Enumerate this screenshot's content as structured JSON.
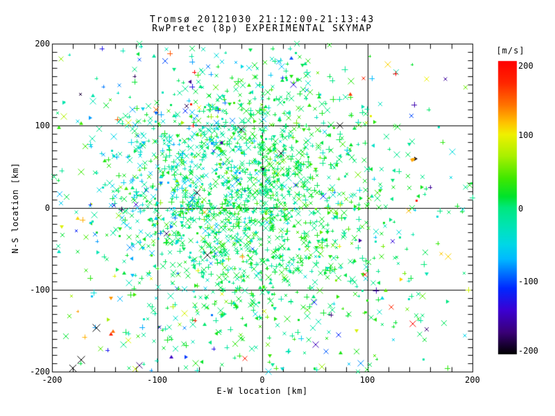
{
  "chart_data": {
    "type": "scatter",
    "title": "Tromsø 20121030 21:12:00-21:13:43",
    "subtitle": "RwPretec (8p) EXPERIMENTAL SKYMAP",
    "xlabel": "E-W location [km]",
    "ylabel": "N-S location [km]",
    "xlim": [
      -200,
      200
    ],
    "ylim": [
      -200,
      200
    ],
    "xticks": [
      -200,
      -100,
      0,
      100,
      200
    ],
    "yticks": [
      -200,
      -100,
      0,
      100,
      200
    ],
    "x_minor_step": 20,
    "y_minor_step": 10,
    "minor_tick_len": 7,
    "grid": true,
    "grid_color": "#000000",
    "frame_color": "#000000",
    "background": "#ffffff",
    "colorbar": {
      "unit_label": "[m/s]",
      "min": -200,
      "max": 200,
      "ticks": [
        200,
        100,
        0,
        -100,
        -200
      ],
      "stops": [
        [
          200,
          "#ff0000"
        ],
        [
          170,
          "#ff2600"
        ],
        [
          140,
          "#ff7300"
        ],
        [
          115,
          "#ffc400"
        ],
        [
          100,
          "#f0f000"
        ],
        [
          70,
          "#a8f000"
        ],
        [
          40,
          "#40e800"
        ],
        [
          15,
          "#00e32c"
        ],
        [
          0,
          "#00e87d"
        ],
        [
          -25,
          "#00e4b4"
        ],
        [
          -50,
          "#00d8e6"
        ],
        [
          -70,
          "#00baff"
        ],
        [
          -90,
          "#0070ff"
        ],
        [
          -110,
          "#0028ff"
        ],
        [
          -140,
          "#3c00d2"
        ],
        [
          -170,
          "#3a0078"
        ],
        [
          -200,
          "#000000"
        ]
      ]
    },
    "marker_types": [
      "x",
      "plus",
      "tri",
      "dot"
    ],
    "marker_mix": [
      0.48,
      0.34,
      0.12,
      0.06
    ],
    "point_generation": {
      "seed": 20121030,
      "size_range": [
        4,
        9
      ],
      "clusters": [
        {
          "n": 1450,
          "cx": -12,
          "cy": 8,
          "sx": 58,
          "sy": 82,
          "v_mean": 8,
          "v_sd": 20
        },
        {
          "n": 300,
          "cx": -70,
          "cy": 40,
          "sx": 55,
          "sy": 70,
          "v_mean": -48,
          "v_sd": 26
        },
        {
          "n": 340,
          "cx": 5,
          "cy": -30,
          "sx": 115,
          "sy": 112,
          "v_mean": 2,
          "v_sd": 30
        },
        {
          "n": 130,
          "uniform": true,
          "x_range": [
            -196,
            198
          ],
          "y_range": [
            -199,
            196
          ],
          "v_range": [
            -200,
            200
          ]
        }
      ]
    },
    "notable_points": [
      {
        "x": -158,
        "y": -147,
        "v": -200,
        "marker": "x",
        "size": 11
      },
      {
        "x": -172,
        "y": -186,
        "v": -200,
        "marker": "x",
        "size": 11
      },
      {
        "x": -180,
        "y": -196,
        "v": -200,
        "marker": "x",
        "size": 10
      },
      {
        "x": 74,
        "y": 100,
        "v": -200,
        "marker": "x",
        "size": 9
      },
      {
        "x": -62,
        "y": 18,
        "v": -200,
        "marker": "x",
        "size": 10
      },
      {
        "x": -52,
        "y": -58,
        "v": -200,
        "marker": "x",
        "size": 10
      },
      {
        "x": -20,
        "y": 95,
        "v": -200,
        "marker": "x",
        "size": 9
      },
      {
        "x": 18,
        "y": 66,
        "v": -200,
        "marker": "x",
        "size": 9
      },
      {
        "x": 143,
        "y": -142,
        "v": 195,
        "marker": "x",
        "size": 9
      },
      {
        "x": 127,
        "y": 164,
        "v": 200,
        "marker": "plus",
        "size": 7
      },
      {
        "x": 51,
        "y": -167,
        "v": -148,
        "marker": "x",
        "size": 9
      },
      {
        "x": 6,
        "y": -200,
        "v": -55,
        "marker": "x",
        "size": 9
      },
      {
        "x": -65,
        "y": 165,
        "v": 200,
        "marker": "plus",
        "size": 6
      },
      {
        "x": 177,
        "y": -60,
        "v": 110,
        "marker": "x",
        "size": 9
      },
      {
        "x": -66,
        "y": 100,
        "v": 200,
        "marker": "plus",
        "size": 6
      }
    ]
  }
}
